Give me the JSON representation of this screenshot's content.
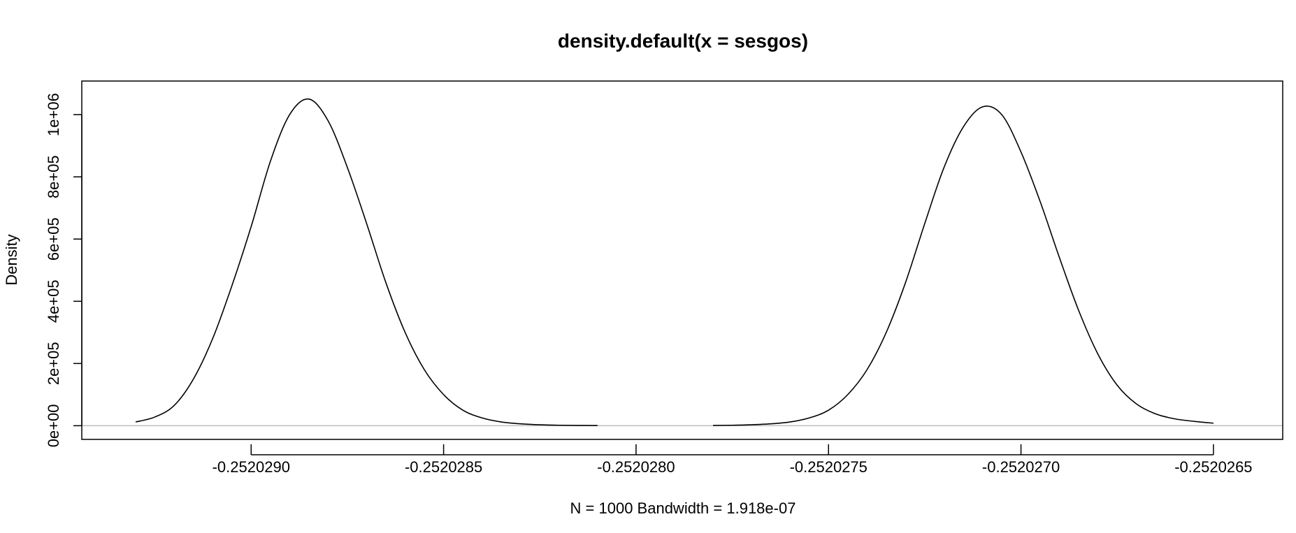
{
  "chart_data": {
    "type": "line",
    "title": "density.default(x = sesgos)",
    "xlabel": "N = 1000   Bandwidth = 1.918e-07",
    "ylabel": "Density",
    "xlim": [
      -0.25202944,
      -0.25202632
    ],
    "ylim": [
      -44000,
      1108000
    ],
    "x_ticks": [
      -0.252029,
      -0.2520285,
      -0.252028,
      -0.2520275,
      -0.252027,
      -0.2520265
    ],
    "x_tick_labels": [
      "-0.2520290",
      "-0.2520285",
      "-0.2520280",
      "-0.2520275",
      "-0.2520270",
      "-0.2520265"
    ],
    "y_ticks": [
      0,
      200000,
      400000,
      600000,
      800000,
      1000000
    ],
    "y_tick_labels": [
      "0e+00",
      "2e+05",
      "4e+05",
      "6e+05",
      "8e+05",
      "1e+06"
    ],
    "baseline": 0,
    "baseline_color": "#bebebe",
    "line_color": "#000000",
    "grid": false,
    "legend": "none",
    "series": [
      {
        "x": [
          -0.2520293,
          -0.25202925,
          -0.2520292,
          -0.25202915,
          -0.2520291,
          -0.25202905,
          -0.252029,
          -0.25202895,
          -0.2520289,
          -0.25202885,
          -0.2520288,
          -0.25202875,
          -0.2520287,
          -0.25202865,
          -0.2520286,
          -0.25202855,
          -0.2520285,
          -0.25202845,
          -0.2520284,
          -0.25202835,
          -0.2520283,
          -0.25202825,
          -0.2520282,
          -0.25202815,
          -0.2520281
        ],
        "y": [
          12000,
          28000,
          65000,
          150000,
          280000,
          450000,
          640000,
          850000,
          1000000,
          1050000,
          980000,
          830000,
          650000,
          460000,
          300000,
          180000,
          100000,
          50000,
          25000,
          12000,
          6000,
          3000,
          1500,
          800,
          500
        ]
      },
      {
        "x": [
          -0.2520278,
          -0.25202775,
          -0.2520277,
          -0.25202765,
          -0.2520276,
          -0.25202755,
          -0.2520275,
          -0.25202745,
          -0.2520274,
          -0.25202735,
          -0.2520273,
          -0.25202725,
          -0.2520272,
          -0.25202715,
          -0.2520271,
          -0.25202705,
          -0.252027,
          -0.25202695,
          -0.2520269,
          -0.25202685,
          -0.2520268,
          -0.25202675,
          -0.2520267,
          -0.25202665,
          -0.2520266,
          -0.25202655,
          -0.2520265
        ],
        "y": [
          800,
          1500,
          3000,
          6000,
          12000,
          25000,
          50000,
          100000,
          180000,
          300000,
          460000,
          650000,
          830000,
          960000,
          1025000,
          1000000,
          880000,
          720000,
          540000,
          370000,
          230000,
          130000,
          70000,
          38000,
          22000,
          14000,
          8000
        ]
      }
    ]
  }
}
